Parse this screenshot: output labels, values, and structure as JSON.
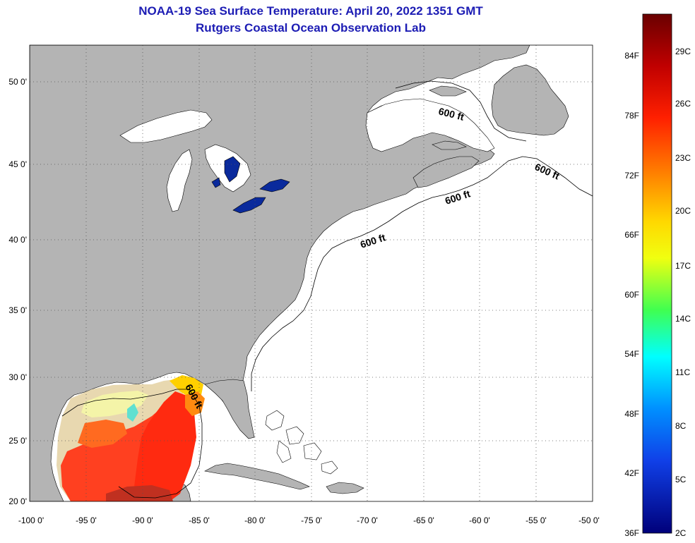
{
  "title": "NOAA-19 Sea Surface Temperature:  April 20, 2022 1351 GMT",
  "subtitle": "Rutgers Coastal Ocean Observation Lab",
  "map": {
    "lon_range": [
      -100,
      -50
    ],
    "lat_range": [
      20,
      52
    ],
    "lat_ticks": [
      "50 0'",
      "45 0'",
      "40 0'",
      "35 0'",
      "30 0'",
      "25 0'",
      "20 0'"
    ],
    "lon_ticks": [
      "-100 0'",
      "-95 0'",
      "-90 0'",
      "-85 0'",
      "-80 0'",
      "-75 0'",
      "-70 0'",
      "-65 0'",
      "-60 0'",
      "-55 0'",
      "-50 0'"
    ],
    "contour_label": "600 ft",
    "colors": {
      "land": "#b4b4b4",
      "no_data": "#ffffff",
      "cold_lake": "#0a2a9c"
    }
  },
  "colorbar": {
    "fahrenheit": [
      "84F",
      "78F",
      "72F",
      "66F",
      "60F",
      "54F",
      "48F",
      "42F",
      "36F"
    ],
    "celsius": [
      "29C",
      "26C",
      "23C",
      "20C",
      "17C",
      "14C",
      "11C",
      "8C",
      "5C",
      "2C"
    ],
    "colors": [
      "#7a0000",
      "#e81010",
      "#ff6a00",
      "#ffd000",
      "#f0ff10",
      "#30ff60",
      "#00ffff",
      "#0090ff",
      "#1030e0",
      "#00008c"
    ]
  }
}
